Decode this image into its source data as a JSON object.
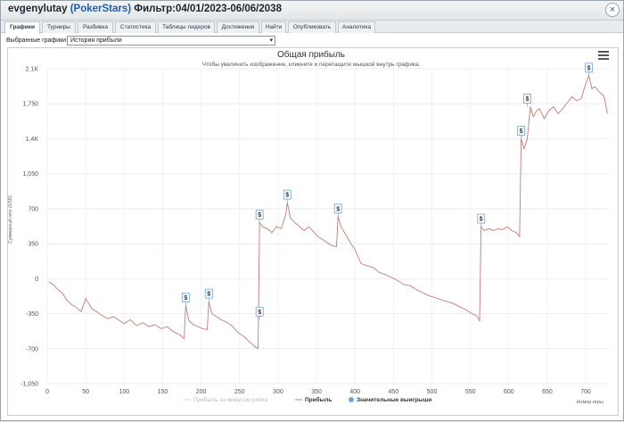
{
  "window": {
    "user": "evgenylutay",
    "site": "(PokerStars)",
    "filter": "Фильтр:04/01/2023-06/06/2038",
    "close_label": "×"
  },
  "tabs": [
    {
      "label": "Графики",
      "active": true
    },
    {
      "label": "Турниры"
    },
    {
      "label": "Разбивка"
    },
    {
      "label": "Статистика"
    },
    {
      "label": "Таблицы лидеров"
    },
    {
      "label": "Достижения"
    },
    {
      "label": "Найти"
    },
    {
      "label": "Опубликовать"
    },
    {
      "label": "Аналитика"
    }
  ],
  "selector": {
    "label": "Выбранные графики:",
    "value": "История прибыли"
  },
  "chart_data": {
    "type": "line",
    "title": "Общая прибыль",
    "subtitle": "Чтобы увеличить изображение, кликните и перетащите мышкой внутрь графика.",
    "xlabel": "Номер игры",
    "ylabel": "Суммарный итог (USD)",
    "xlim": [
      0,
      730
    ],
    "ylim": [
      -1050,
      2100
    ],
    "xticks": [
      0,
      50,
      100,
      150,
      200,
      250,
      300,
      350,
      400,
      450,
      500,
      550,
      600,
      650,
      700
    ],
    "yticks": [
      -1050,
      -700,
      -350,
      0,
      350,
      700,
      1050,
      1400,
      1750,
      2100
    ],
    "ytick_labels": [
      "-1,050",
      "-700",
      "-350",
      "0",
      "350",
      "700",
      "1,050",
      "1.4K",
      "1,750",
      "2.1K"
    ],
    "line_color": "#c47c78",
    "marker_color": "#6ea6d9",
    "series": [
      {
        "name": "Прибыль",
        "x": [
          2,
          8,
          14,
          20,
          26,
          32,
          38,
          44,
          50,
          54,
          58,
          64,
          70,
          78,
          86,
          94,
          100,
          108,
          116,
          124,
          132,
          140,
          148,
          156,
          164,
          172,
          178,
          180,
          184,
          190,
          196,
          202,
          208,
          210,
          214,
          220,
          226,
          232,
          240,
          248,
          256,
          264,
          270,
          274,
          276,
          280,
          286,
          292,
          298,
          304,
          310,
          312,
          316,
          322,
          328,
          334,
          340,
          346,
          352,
          358,
          364,
          370,
          376,
          378,
          382,
          388,
          394,
          400,
          408,
          416,
          424,
          432,
          440,
          448,
          456,
          464,
          472,
          480,
          488,
          496,
          504,
          512,
          520,
          528,
          536,
          544,
          552,
          558,
          562,
          564,
          568,
          574,
          580,
          586,
          592,
          598,
          604,
          610,
          614,
          616,
          620,
          624,
          628,
          632,
          636,
          640,
          646,
          652,
          658,
          664,
          670,
          676,
          682,
          688,
          694,
          700,
          704,
          708,
          712,
          716,
          720,
          724,
          728
        ],
        "y": [
          -30,
          -60,
          -110,
          -150,
          -220,
          -260,
          -290,
          -330,
          -200,
          -250,
          -300,
          -330,
          -360,
          -400,
          -380,
          -420,
          -450,
          -410,
          -470,
          -440,
          -480,
          -460,
          -500,
          -480,
          -530,
          -560,
          -600,
          -270,
          -420,
          -460,
          -480,
          -500,
          -510,
          -230,
          -350,
          -380,
          -410,
          -430,
          -470,
          -540,
          -580,
          -640,
          -680,
          -700,
          560,
          520,
          500,
          460,
          520,
          500,
          640,
          760,
          610,
          560,
          520,
          480,
          520,
          470,
          420,
          390,
          360,
          330,
          320,
          620,
          520,
          440,
          360,
          290,
          150,
          130,
          110,
          60,
          40,
          10,
          -20,
          -60,
          -70,
          -110,
          -140,
          -170,
          -190,
          -210,
          -230,
          -250,
          -280,
          -310,
          -350,
          -370,
          -420,
          520,
          480,
          500,
          480,
          500,
          490,
          520,
          480,
          460,
          420,
          1400,
          1300,
          1400,
          1720,
          1620,
          1680,
          1700,
          1600,
          1680,
          1720,
          1650,
          1700,
          1760,
          1820,
          1780,
          1800,
          1950,
          2030,
          1900,
          1920,
          1880,
          1850,
          1820,
          1650
        ]
      }
    ],
    "big_wins": [
      {
        "x": 180,
        "y": -270
      },
      {
        "x": 210,
        "y": -230
      },
      {
        "x": 276,
        "y": -410
      },
      {
        "x": 276,
        "y": 560
      },
      {
        "x": 312,
        "y": 760
      },
      {
        "x": 378,
        "y": 620
      },
      {
        "x": 564,
        "y": 520
      },
      {
        "x": 616,
        "y": 1400
      },
      {
        "x": 624,
        "y": 1720
      },
      {
        "x": 704,
        "y": 2030
      }
    ],
    "marker_label": "$",
    "legend": [
      {
        "label": "Прибыль за минусом рейка",
        "color": "#d9d9d9",
        "hidden": true
      },
      {
        "label": "Прибыль",
        "color": "#c47c78"
      },
      {
        "label": "Значительные выигрыши",
        "color": "#6ea6d9"
      }
    ],
    "legend_position": "bottom-center"
  }
}
